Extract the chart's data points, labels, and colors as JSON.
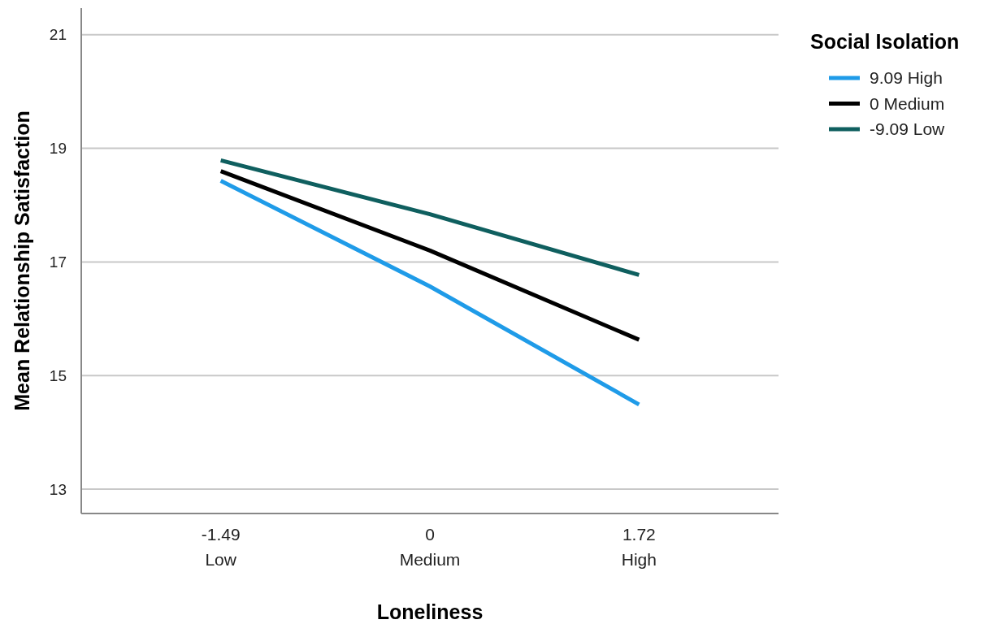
{
  "chart_data": {
    "type": "line",
    "xlabel": "Loneliness",
    "ylabel": "Mean Relationship Satisfaction",
    "legend_title": "Social Isolation",
    "categories": [
      "-1.49\nLow",
      "0\nMedium",
      "1.72\nHigh"
    ],
    "series": [
      {
        "name": "9.09  High",
        "color": "#1f9be8",
        "values": [
          18.43,
          16.57,
          14.49
        ]
      },
      {
        "name": "0  Medium",
        "color": "#000000",
        "values": [
          18.6,
          17.2,
          15.63
        ]
      },
      {
        "name": "-9.09   Low",
        "color": "#0f5f5f",
        "values": [
          18.79,
          17.84,
          16.77
        ]
      }
    ],
    "ylim": [
      12.57,
      21.47
    ],
    "yticks": [
      13,
      15,
      17,
      19,
      21
    ],
    "grid": "y",
    "legend": "top right",
    "line_style": "solid",
    "marker": "none"
  }
}
